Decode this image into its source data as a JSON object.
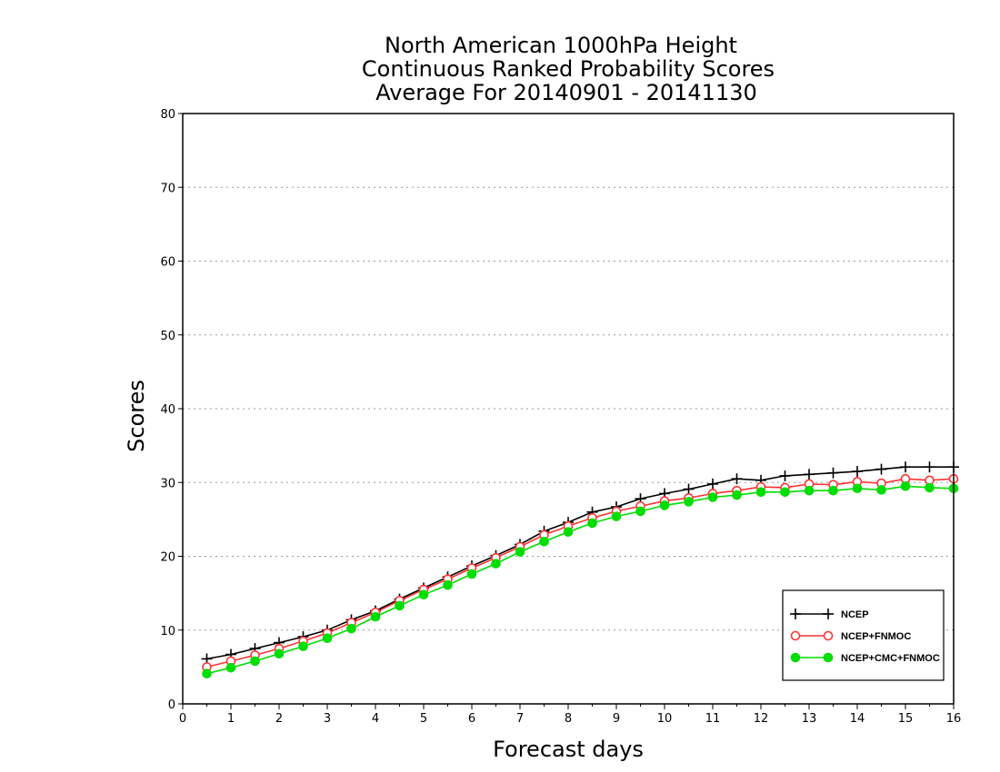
{
  "chart_data": {
    "type": "line",
    "title": [
      "North American 1000hPa Height",
      "Continuous Ranked Probability Scores",
      "Average For 20140901 - 20141130"
    ],
    "xlabel": "Forecast days",
    "ylabel": "Scores",
    "xlim": [
      0,
      16
    ],
    "ylim": [
      0,
      80
    ],
    "xticks": [
      "0",
      "1",
      "2",
      "3",
      "4",
      "5",
      "6",
      "7",
      "8",
      "9",
      "10",
      "11",
      "12",
      "13",
      "14",
      "15",
      "16"
    ],
    "yticks": [
      "0",
      "10",
      "20",
      "30",
      "40",
      "50",
      "60",
      "70",
      "80"
    ],
    "grid": "horizontal dotted",
    "legend_position": "bottom-right",
    "x": [
      0.5,
      1,
      1.5,
      2,
      2.5,
      3,
      3.5,
      4,
      4.5,
      5,
      5.5,
      6,
      6.5,
      7,
      7.5,
      8,
      8.5,
      9,
      9.5,
      10,
      10.5,
      11,
      11.5,
      12,
      12.5,
      13,
      13.5,
      14,
      14.5,
      15,
      15.5,
      16
    ],
    "series": [
      {
        "name": "NCEP",
        "color": "#000000",
        "marker": "plus",
        "values": [
          6.1,
          6.7,
          7.5,
          8.3,
          9.1,
          10.0,
          11.4,
          12.6,
          14.2,
          15.7,
          17.2,
          18.7,
          20.1,
          21.6,
          23.4,
          24.6,
          26.0,
          26.7,
          27.8,
          28.5,
          29.1,
          29.8,
          30.5,
          30.3,
          30.9,
          31.1,
          31.3,
          31.5,
          31.8,
          32.1,
          32.1,
          32.1
        ]
      },
      {
        "name": "NCEP+FNMOC",
        "color": "#ff3333",
        "marker": "open-circle",
        "values": [
          5.0,
          5.8,
          6.6,
          7.5,
          8.5,
          9.6,
          11.0,
          12.4,
          14.0,
          15.5,
          16.9,
          18.4,
          19.8,
          21.3,
          22.9,
          24.1,
          25.2,
          26.1,
          26.8,
          27.5,
          27.9,
          28.5,
          28.9,
          29.4,
          29.3,
          29.8,
          29.7,
          30.1,
          29.9,
          30.5,
          30.3,
          30.5
        ]
      },
      {
        "name": "NCEP+CMC+FNMOC",
        "color": "#00dd00",
        "marker": "filled-circle",
        "values": [
          4.1,
          4.9,
          5.8,
          6.8,
          7.8,
          8.9,
          10.2,
          11.8,
          13.3,
          14.8,
          16.1,
          17.6,
          19.0,
          20.6,
          22.0,
          23.3,
          24.5,
          25.4,
          26.1,
          26.9,
          27.4,
          28.0,
          28.3,
          28.7,
          28.7,
          28.9,
          28.9,
          29.2,
          29.0,
          29.5,
          29.3,
          29.2
        ]
      }
    ]
  }
}
